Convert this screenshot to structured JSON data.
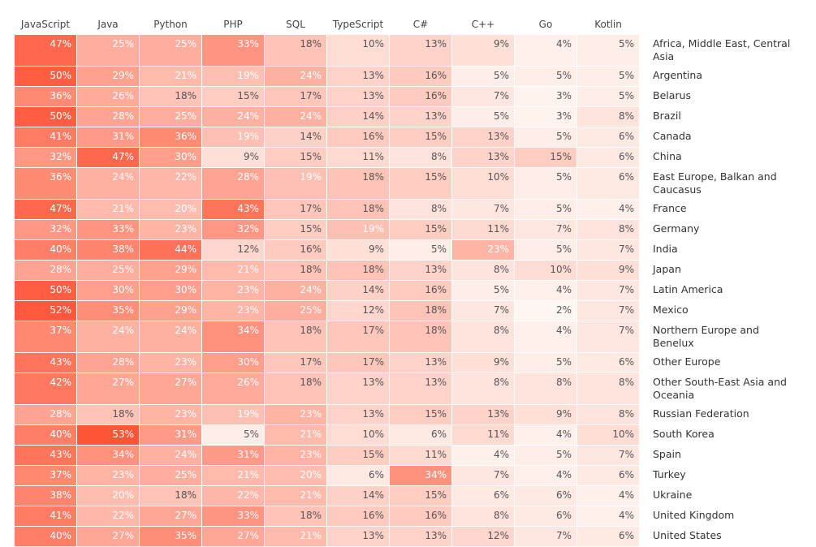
{
  "chart_data": {
    "type": "heatmap",
    "columns": [
      "JavaScript",
      "Java",
      "Python",
      "PHP",
      "SQL",
      "TypeScript",
      "C#",
      "C++",
      "Go",
      "Kotlin"
    ],
    "rows": [
      "Africa, Middle East, Central Asia",
      "Argentina",
      "Belarus",
      "Brazil",
      "Canada",
      "China",
      "East Europe, Balkan and Caucasus",
      "France",
      "Germany",
      "India",
      "Japan",
      "Latin America",
      "Mexico",
      "Northern Europe and Benelux",
      "Other Europe",
      "Other South-East Asia and Oceania",
      "Russian Federation",
      "South Korea",
      "Spain",
      "Turkey",
      "Ukraine",
      "United Kingdom",
      "United States"
    ],
    "values": [
      [
        47,
        25,
        25,
        33,
        18,
        10,
        13,
        9,
        4,
        5
      ],
      [
        50,
        29,
        21,
        19,
        24,
        13,
        16,
        5,
        5,
        5
      ],
      [
        36,
        26,
        18,
        15,
        17,
        13,
        16,
        7,
        3,
        5
      ],
      [
        50,
        28,
        25,
        24,
        24,
        14,
        13,
        5,
        3,
        8
      ],
      [
        41,
        31,
        36,
        19,
        14,
        16,
        15,
        13,
        5,
        6
      ],
      [
        32,
        47,
        30,
        9,
        15,
        11,
        8,
        13,
        15,
        6
      ],
      [
        36,
        24,
        22,
        28,
        19,
        18,
        15,
        10,
        5,
        6
      ],
      [
        47,
        21,
        20,
        43,
        17,
        18,
        8,
        7,
        5,
        4
      ],
      [
        32,
        33,
        23,
        32,
        15,
        19,
        15,
        11,
        7,
        8
      ],
      [
        40,
        38,
        44,
        12,
        16,
        9,
        5,
        23,
        5,
        7
      ],
      [
        28,
        25,
        29,
        21,
        18,
        18,
        13,
        8,
        10,
        9
      ],
      [
        50,
        30,
        30,
        23,
        24,
        14,
        16,
        5,
        4,
        7
      ],
      [
        52,
        35,
        29,
        23,
        25,
        12,
        18,
        7,
        2,
        7
      ],
      [
        37,
        24,
        24,
        34,
        18,
        17,
        18,
        8,
        4,
        7
      ],
      [
        43,
        28,
        23,
        30,
        17,
        17,
        13,
        9,
        5,
        6
      ],
      [
        42,
        27,
        27,
        26,
        18,
        13,
        13,
        8,
        8,
        8
      ],
      [
        28,
        18,
        23,
        19,
        23,
        13,
        15,
        13,
        9,
        8
      ],
      [
        40,
        53,
        31,
        5,
        21,
        10,
        6,
        11,
        4,
        10
      ],
      [
        43,
        34,
        24,
        31,
        23,
        15,
        11,
        4,
        5,
        7
      ],
      [
        37,
        23,
        25,
        21,
        20,
        6,
        34,
        7,
        4,
        6
      ],
      [
        38,
        20,
        18,
        22,
        21,
        14,
        15,
        6,
        6,
        4
      ],
      [
        41,
        22,
        27,
        33,
        18,
        16,
        16,
        8,
        6,
        4
      ],
      [
        40,
        27,
        35,
        27,
        21,
        13,
        13,
        12,
        7,
        6
      ]
    ],
    "value_labels": [
      [
        "47%",
        "25%",
        "25%",
        "33%",
        "18%",
        "10%",
        "13%",
        "9%",
        "4%",
        "5%"
      ],
      [
        "50%",
        "29%",
        "21%",
        "19%",
        "24%",
        "13%",
        "16%",
        "5%",
        "5%",
        "5%"
      ],
      [
        "36%",
        "26%",
        "18%",
        "15%",
        "17%",
        "13%",
        "16%",
        "7%",
        "3%",
        "5%"
      ],
      [
        "50%",
        "28%",
        "25%",
        "24%",
        "24%",
        "14%",
        "13%",
        "5%",
        "3%",
        "8%"
      ],
      [
        "41%",
        "31%",
        "36%",
        "19%",
        "14%",
        "16%",
        "15%",
        "13%",
        "5%",
        "6%"
      ],
      [
        "32%",
        "47%",
        "30%",
        "9%",
        "15%",
        "11%",
        "8%",
        "13%",
        "15%",
        "6%"
      ],
      [
        "36%",
        "24%",
        "22%",
        "28%",
        "19%",
        "18%",
        "15%",
        "10%",
        "5%",
        "6%"
      ],
      [
        "47%",
        "21%",
        "20%",
        "43%",
        "17%",
        "18%",
        "8%",
        "7%",
        "5%",
        "4%"
      ],
      [
        "32%",
        "33%",
        "23%",
        "32%",
        "15%",
        "19%",
        "15%",
        "11%",
        "7%",
        "8%"
      ],
      [
        "40%",
        "38%",
        "44%",
        "12%",
        "16%",
        "9%",
        "5%",
        "23%",
        "5%",
        "7%"
      ],
      [
        "28%",
        "25%",
        "29%",
        "21%",
        "18%",
        "18%",
        "13%",
        "8%",
        "10%",
        "9%"
      ],
      [
        "50%",
        "30%",
        "30%",
        "23%",
        "24%",
        "14%",
        "16%",
        "5%",
        "4%",
        "7%"
      ],
      [
        "52%",
        "35%",
        "29%",
        "23%",
        "25%",
        "12%",
        "18%",
        "7%",
        "2%",
        "7%"
      ],
      [
        "37%",
        "24%",
        "24%",
        "34%",
        "18%",
        "17%",
        "18%",
        "8%",
        "4%",
        "7%"
      ],
      [
        "43%",
        "28%",
        "23%",
        "30%",
        "17%",
        "17%",
        "13%",
        "9%",
        "5%",
        "6%"
      ],
      [
        "42%",
        "27%",
        "27%",
        "26%",
        "18%",
        "13%",
        "13%",
        "8%",
        "8%",
        "8%"
      ],
      [
        "28%",
        "18%",
        "23%",
        "19%",
        "23%",
        "13%",
        "15%",
        "13%",
        "9%",
        "8%"
      ],
      [
        "40%",
        "53%",
        "31%",
        "5%",
        "21%",
        "10%",
        "6%",
        "11%",
        "4%",
        "10%"
      ],
      [
        "43%",
        "34%",
        "24%",
        "31%",
        "23%",
        "15%",
        "11%",
        "4%",
        "5%",
        "7%"
      ],
      [
        "37%",
        "23%",
        "25%",
        "21%",
        "20%",
        "6%",
        "34%",
        "7%",
        "4%",
        "6%"
      ],
      [
        "38%",
        "20%",
        "18%",
        "22%",
        "21%",
        "14%",
        "15%",
        "6%",
        "6%",
        "4%"
      ],
      [
        "41%",
        "22%",
        "27%",
        "33%",
        "18%",
        "16%",
        "16%",
        "8%",
        "6%",
        "4%"
      ],
      [
        "40%",
        "27%",
        "35%",
        "27%",
        "21%",
        "13%",
        "13%",
        "12%",
        "7%",
        "6%"
      ]
    ]
  }
}
